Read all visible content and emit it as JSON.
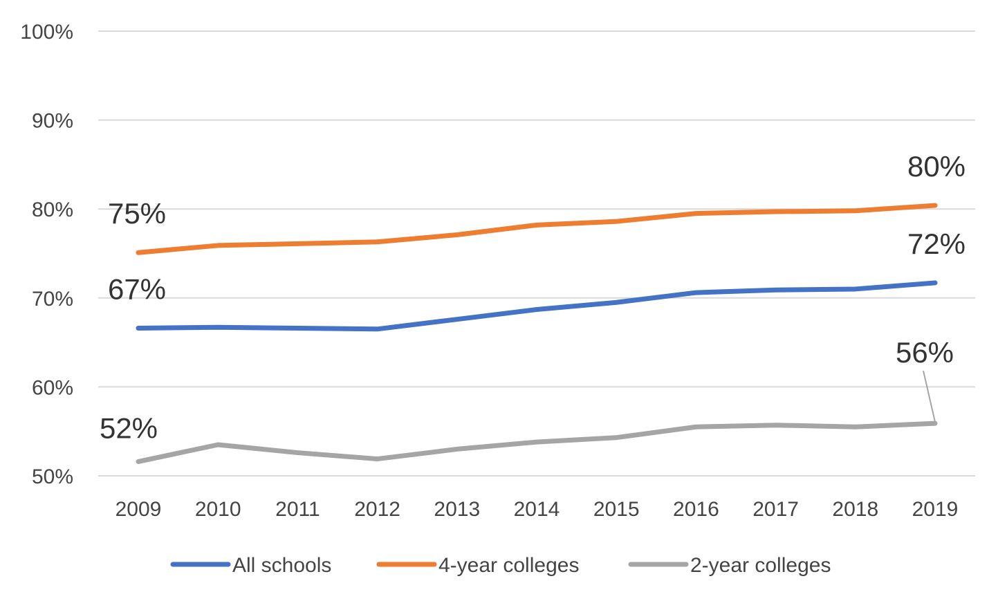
{
  "chart_data": {
    "type": "line",
    "title": "",
    "xlabel": "",
    "ylabel": "",
    "categories": [
      "2009",
      "2010",
      "2011",
      "2012",
      "2013",
      "2014",
      "2015",
      "2016",
      "2017",
      "2018",
      "2019"
    ],
    "ylim": [
      50,
      100
    ],
    "yticks": [
      50,
      60,
      70,
      80,
      90,
      100
    ],
    "ytick_format": "%",
    "grid": true,
    "legend_position": "bottom",
    "series": [
      {
        "name": "All schools",
        "color": "#4472C4",
        "values": [
          66.6,
          66.7,
          66.6,
          66.5,
          67.6,
          68.7,
          69.5,
          70.6,
          70.9,
          71.0,
          71.7
        ]
      },
      {
        "name": "4-year colleges",
        "color": "#ED7D31",
        "values": [
          75.1,
          75.9,
          76.1,
          76.3,
          77.1,
          78.2,
          78.6,
          79.5,
          79.7,
          79.8,
          80.4
        ]
      },
      {
        "name": "2-year colleges",
        "color": "#A5A5A5",
        "values": [
          51.6,
          53.5,
          52.6,
          51.9,
          53.0,
          53.8,
          54.3,
          55.5,
          55.7,
          55.5,
          55.9
        ]
      }
    ],
    "data_labels": [
      {
        "series": 0,
        "index": 0,
        "text": "67%"
      },
      {
        "series": 0,
        "index": 10,
        "text": "72%"
      },
      {
        "series": 1,
        "index": 0,
        "text": "75%"
      },
      {
        "series": 1,
        "index": 10,
        "text": "80%"
      },
      {
        "series": 2,
        "index": 0,
        "text": "52%"
      },
      {
        "series": 2,
        "index": 10,
        "text": "56%"
      }
    ]
  }
}
